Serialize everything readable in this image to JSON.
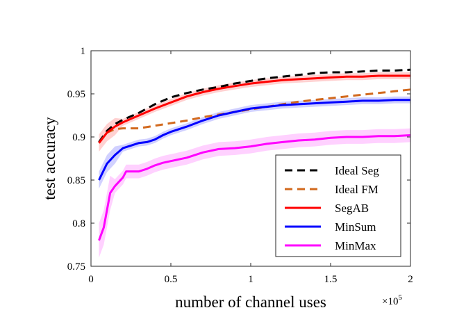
{
  "chart_data": {
    "type": "line",
    "title": "",
    "xlabel": "number of channel uses",
    "ylabel": "test accuracy",
    "x_multiplier_label": "×10",
    "x_multiplier_exp": "5",
    "xlim": [
      0,
      2
    ],
    "ylim": [
      0.75,
      1
    ],
    "xticks": [
      0,
      0.5,
      1,
      1.5,
      2
    ],
    "xtick_labels": [
      "0",
      "0.5",
      "1",
      "1.5",
      "2"
    ],
    "yticks": [
      0.75,
      0.8,
      0.85,
      0.9,
      0.95,
      1
    ],
    "ytick_labels": [
      "0.75",
      "0.8",
      "0.85",
      "0.9",
      "0.95",
      "1"
    ],
    "grid": false,
    "legend_position": "bottom-right",
    "series": [
      {
        "name": "Ideal Seg",
        "color": "#000000",
        "style": "dashed",
        "x": [
          0.05,
          0.1,
          0.15,
          0.2,
          0.3,
          0.4,
          0.5,
          0.6,
          0.7,
          0.8,
          0.9,
          1.0,
          1.1,
          1.2,
          1.3,
          1.4,
          1.5,
          1.6,
          1.7,
          1.8,
          1.9,
          2.0
        ],
        "y": [
          0.894,
          0.907,
          0.915,
          0.92,
          0.928,
          0.938,
          0.946,
          0.951,
          0.955,
          0.958,
          0.962,
          0.965,
          0.968,
          0.97,
          0.972,
          0.974,
          0.975,
          0.975,
          0.976,
          0.977,
          0.977,
          0.978
        ]
      },
      {
        "name": "Ideal FM",
        "color": "#D2691E",
        "style": "dashed",
        "x": [
          0.05,
          0.1,
          0.15,
          0.2,
          0.3,
          0.4,
          0.5,
          0.6,
          0.7,
          0.8,
          0.9,
          1.0,
          1.1,
          1.2,
          1.3,
          1.4,
          1.5,
          1.6,
          1.7,
          1.8,
          1.9,
          2.0
        ],
        "y": [
          0.893,
          0.905,
          0.909,
          0.91,
          0.91,
          0.913,
          0.916,
          0.919,
          0.923,
          0.926,
          0.929,
          0.932,
          0.935,
          0.938,
          0.941,
          0.943,
          0.945,
          0.947,
          0.949,
          0.951,
          0.953,
          0.955
        ]
      },
      {
        "name": "SegAB",
        "color": "#FF0000",
        "style": "solid",
        "x": [
          0.05,
          0.1,
          0.15,
          0.2,
          0.3,
          0.4,
          0.5,
          0.6,
          0.7,
          0.8,
          0.9,
          1.0,
          1.1,
          1.2,
          1.3,
          1.4,
          1.5,
          1.6,
          1.7,
          1.8,
          1.9,
          2.0
        ],
        "y": [
          0.893,
          0.905,
          0.912,
          0.917,
          0.925,
          0.933,
          0.94,
          0.947,
          0.952,
          0.956,
          0.959,
          0.962,
          0.964,
          0.966,
          0.967,
          0.968,
          0.969,
          0.97,
          0.97,
          0.971,
          0.971,
          0.971
        ]
      },
      {
        "name": "MinSum",
        "color": "#0000FF",
        "style": "solid",
        "x": [
          0.05,
          0.1,
          0.15,
          0.2,
          0.25,
          0.3,
          0.35,
          0.4,
          0.45,
          0.5,
          0.6,
          0.7,
          0.8,
          0.9,
          1.0,
          1.1,
          1.2,
          1.3,
          1.4,
          1.5,
          1.6,
          1.7,
          1.8,
          1.9,
          2.0
        ],
        "y": [
          0.85,
          0.869,
          0.879,
          0.887,
          0.89,
          0.893,
          0.894,
          0.897,
          0.902,
          0.906,
          0.912,
          0.919,
          0.925,
          0.929,
          0.933,
          0.935,
          0.937,
          0.938,
          0.939,
          0.94,
          0.941,
          0.942,
          0.942,
          0.943,
          0.943
        ]
      },
      {
        "name": "MinMax",
        "color": "#FF00FF",
        "style": "solid",
        "x": [
          0.05,
          0.08,
          0.12,
          0.15,
          0.2,
          0.22,
          0.25,
          0.3,
          0.35,
          0.4,
          0.45,
          0.5,
          0.6,
          0.7,
          0.8,
          0.9,
          1.0,
          1.1,
          1.2,
          1.3,
          1.4,
          1.5,
          1.6,
          1.7,
          1.8,
          1.9,
          2.0
        ],
        "y": [
          0.78,
          0.795,
          0.835,
          0.843,
          0.853,
          0.86,
          0.86,
          0.86,
          0.863,
          0.867,
          0.87,
          0.872,
          0.876,
          0.882,
          0.886,
          0.887,
          0.889,
          0.892,
          0.894,
          0.896,
          0.897,
          0.899,
          0.9,
          0.9,
          0.901,
          0.901,
          0.902
        ]
      }
    ]
  }
}
